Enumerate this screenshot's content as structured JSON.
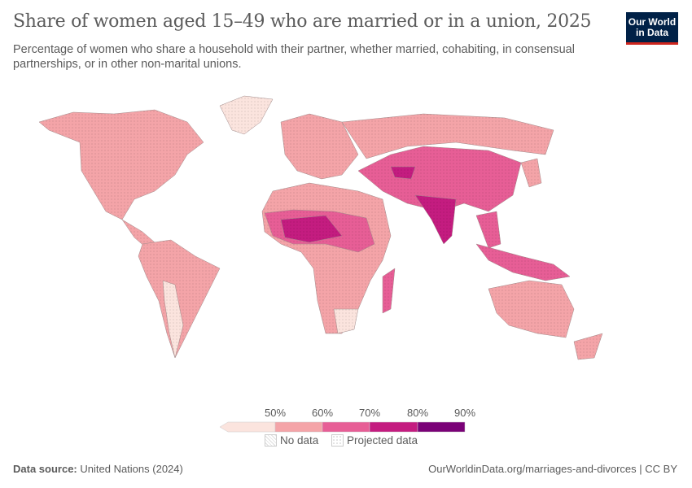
{
  "header": {
    "title": "Share of women aged 15–49 who are married or in a union, 2025",
    "subtitle": "Percentage of women who share a household with their partner, whether married, cohabiting, in consensual partnerships, or in other non-marital unions.",
    "logo_line1": "Our World",
    "logo_line2": "in Data"
  },
  "legend": {
    "ticks": [
      "50%",
      "60%",
      "70%",
      "80%",
      "90%"
    ],
    "bins": [
      {
        "range": "<50%",
        "color": "#fbe4de"
      },
      {
        "range": "50–60%",
        "color": "#f4a4a8"
      },
      {
        "range": "60–70%",
        "color": "#e75e96"
      },
      {
        "range": "70–80%",
        "color": "#c41c80"
      },
      {
        "range": "80–90%",
        "color": "#7a0177"
      }
    ],
    "no_data_label": "No data",
    "projected_label": "Projected data"
  },
  "footer": {
    "source_label": "Data source:",
    "source_value": "United Nations (2024)",
    "url": "OurWorldinData.org/marriages-and-divorces | CC BY"
  }
}
